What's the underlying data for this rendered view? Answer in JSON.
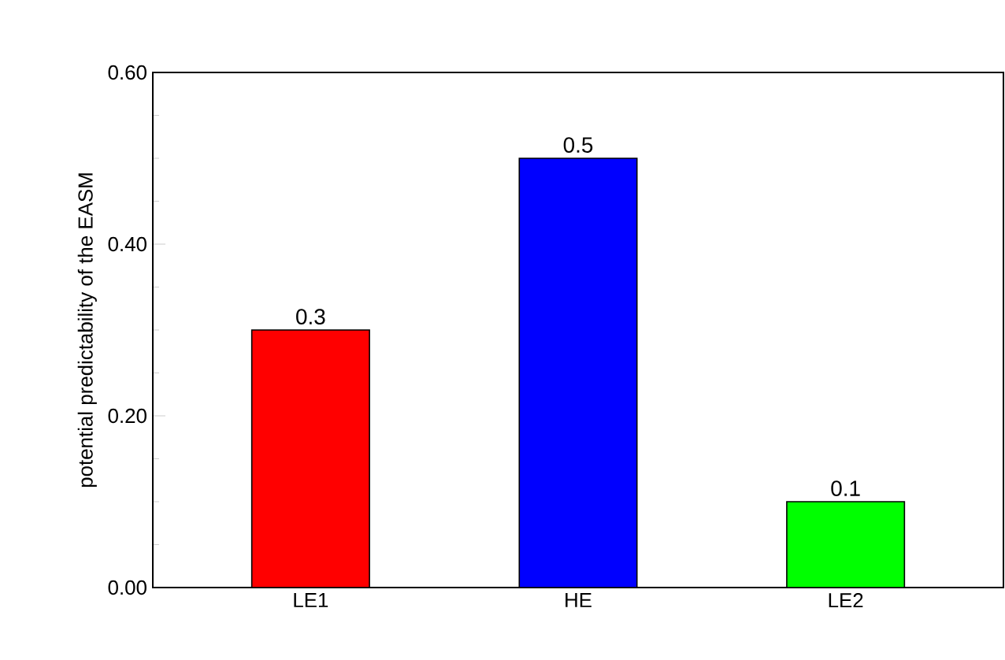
{
  "chart_data": {
    "type": "bar",
    "ylabel": "potential predictability of the EASM",
    "categories": [
      "LE1",
      "HE",
      "LE2"
    ],
    "values": [
      0.3,
      0.5,
      0.1
    ],
    "colors": [
      "#ff0000",
      "#0000ff",
      "#00ff00"
    ],
    "ylim": [
      0,
      0.6
    ],
    "yticks": [
      {
        "value": 0,
        "label": "0.00"
      },
      {
        "value": 0.2,
        "label": "0.20"
      },
      {
        "value": 0.4,
        "label": "0.40"
      },
      {
        "value": 0.6,
        "label": "0.60"
      }
    ],
    "data_labels": true
  }
}
